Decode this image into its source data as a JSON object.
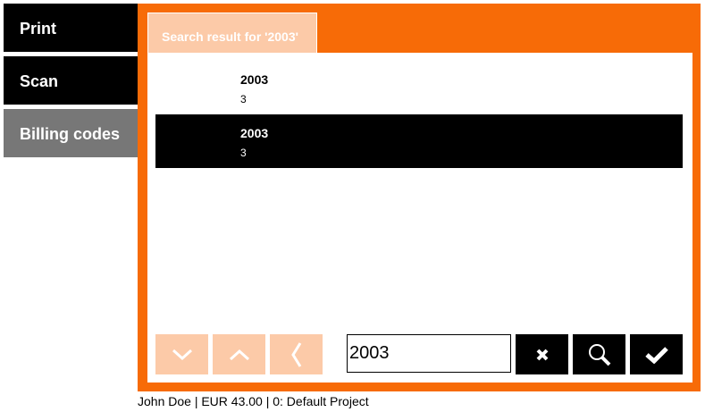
{
  "sidebar": {
    "items": [
      {
        "label": "Print",
        "color": "#000000"
      },
      {
        "label": "Scan",
        "color": "#000000"
      },
      {
        "label": "Billing codes",
        "color": "#777777"
      }
    ]
  },
  "tab": {
    "label": "Search result for '2003'"
  },
  "results": [
    {
      "title": "2003",
      "sub": "3",
      "selected": false
    },
    {
      "title": "2003",
      "sub": "3",
      "selected": true
    }
  ],
  "toolbar": {
    "search_value": "2003",
    "buttons": [
      "chevron-down",
      "chevron-up",
      "chevron-left",
      "clear",
      "search",
      "confirm"
    ]
  },
  "footer": {
    "status": "John Doe | EUR 43.00 | 0: Default Project"
  },
  "colors": {
    "accent": "#f76b07",
    "accent_light": "#fccaa8"
  }
}
